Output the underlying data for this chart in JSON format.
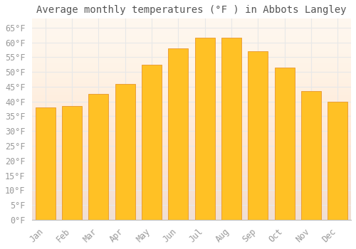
{
  "title": "Average monthly temperatures (°F ) in Abbots Langley",
  "months": [
    "Jan",
    "Feb",
    "Mar",
    "Apr",
    "May",
    "Jun",
    "Jul",
    "Aug",
    "Sep",
    "Oct",
    "Nov",
    "Dec"
  ],
  "values": [
    38,
    38.5,
    42.5,
    46,
    52.5,
    58,
    61.5,
    61.5,
    57,
    51.5,
    43.5,
    40
  ],
  "bar_color_top": "#FFC125",
  "bar_color_bottom": "#F5A623",
  "bar_edge_color": "#E8962E",
  "background_color": "#FFFFFF",
  "background_gradient_top": "#FFF5E6",
  "background_gradient_bottom": "#FFECD0",
  "grid_color": "#E8E8E8",
  "ylim": [
    0,
    68
  ],
  "yticks": [
    0,
    5,
    10,
    15,
    20,
    25,
    30,
    35,
    40,
    45,
    50,
    55,
    60,
    65
  ],
  "title_fontsize": 10,
  "tick_fontsize": 8.5,
  "tick_color": "#999999",
  "title_color": "#555555",
  "font_family": "monospace",
  "bar_width": 0.75
}
